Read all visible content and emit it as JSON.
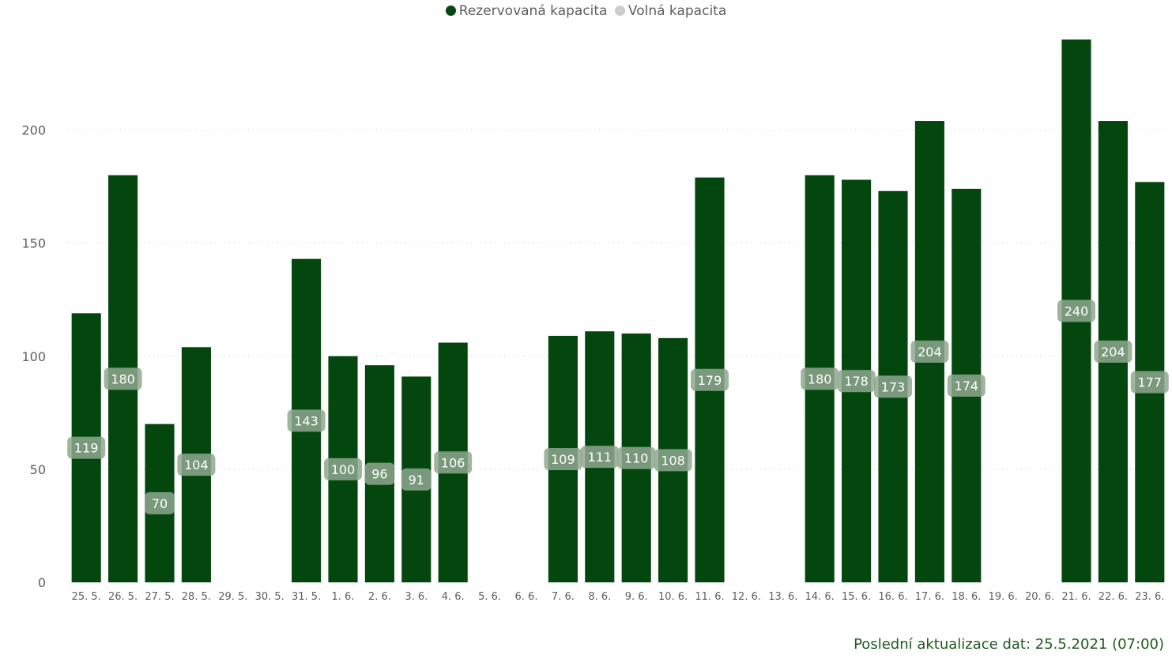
{
  "legend": [
    {
      "label": "Rezervovaná kapacita",
      "color": "#03470f"
    },
    {
      "label": "Volná kapacita",
      "color": "#cccccc"
    }
  ],
  "footer": "Poslední aktualizace dat: 25.5.2021 (07:00)",
  "chart_data": {
    "type": "bar",
    "stacked": true,
    "categories": [
      "25. 5.",
      "26. 5.",
      "27. 5.",
      "28. 5.",
      "29. 5.",
      "30. 5.",
      "31. 5.",
      "1. 6.",
      "2. 6.",
      "3. 6.",
      "4. 6.",
      "5. 6.",
      "6. 6.",
      "7. 6.",
      "8. 6.",
      "9. 6.",
      "10. 6.",
      "11. 6.",
      "12. 6.",
      "13. 6.",
      "14. 6.",
      "15. 6.",
      "16. 6.",
      "17. 6.",
      "18. 6.",
      "19. 6.",
      "20. 6.",
      "21. 6.",
      "22. 6.",
      "23. 6."
    ],
    "series": [
      {
        "name": "Rezervovaná kapacita",
        "color": "#03470f",
        "values": [
          119,
          180,
          70,
          104,
          null,
          null,
          143,
          100,
          96,
          91,
          106,
          null,
          null,
          109,
          111,
          110,
          108,
          179,
          null,
          null,
          180,
          178,
          173,
          204,
          174,
          null,
          null,
          240,
          204,
          177
        ]
      },
      {
        "name": "Volná kapacita",
        "color": "#cccccc",
        "values": [
          null,
          null,
          null,
          null,
          null,
          null,
          null,
          null,
          null,
          null,
          null,
          null,
          null,
          null,
          null,
          null,
          null,
          null,
          null,
          null,
          null,
          null,
          null,
          null,
          null,
          null,
          null,
          null,
          null,
          null
        ]
      }
    ],
    "yticks": [
      0,
      50,
      100,
      150,
      200
    ],
    "ylim": [
      0,
      240
    ],
    "grid": true,
    "legend_position": "top-center",
    "data_labels": true
  }
}
